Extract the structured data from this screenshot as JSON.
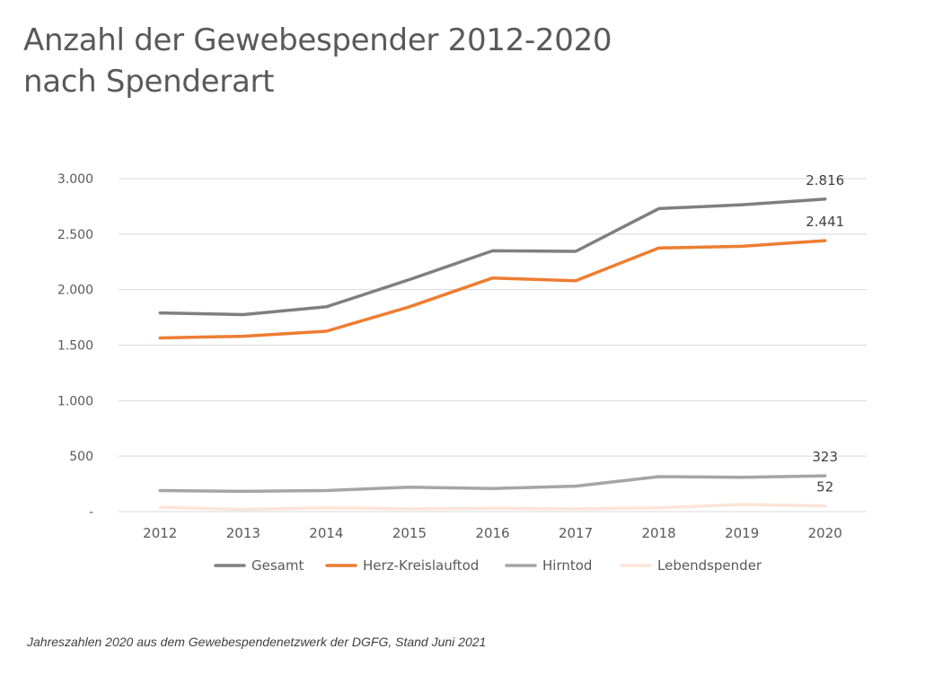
{
  "title_line1": "Anzahl der Gewebespender 2012-2020",
  "title_line2": "nach Spenderart",
  "footnote": "Jahreszahlen 2020 aus dem Gewebespendenetzwerk der DGFG, Stand Juni 2021",
  "colors": {
    "Gesamt": "#7f7f7f",
    "Herz-Kreislauftod": "#ed7d31",
    "Hirntod": "#a5a5a5",
    "Lebendspender": "#fbe5d6",
    "grid": "#d9d9d9",
    "text": "#595959"
  },
  "chart_data": {
    "type": "line",
    "categories": [
      "2012",
      "2013",
      "2014",
      "2015",
      "2016",
      "2017",
      "2018",
      "2019",
      "2020"
    ],
    "ylim": [
      0,
      3000
    ],
    "yticks": [
      {
        "value": 0,
        "label": "-"
      },
      {
        "value": 500,
        "label": "500"
      },
      {
        "value": 1000,
        "label": "1.000"
      },
      {
        "value": 1500,
        "label": "1.500"
      },
      {
        "value": 2000,
        "label": "2.000"
      },
      {
        "value": 2500,
        "label": "2.500"
      },
      {
        "value": 3000,
        "label": "3.000"
      }
    ],
    "grid": true,
    "legend": "bottom",
    "series": [
      {
        "name": "Gesamt",
        "values": [
          1790,
          1775,
          1845,
          2090,
          2350,
          2345,
          2730,
          2765,
          2816
        ],
        "end_label": "2.816"
      },
      {
        "name": "Herz-Kreislauftod",
        "values": [
          1565,
          1580,
          1625,
          1845,
          2105,
          2080,
          2375,
          2390,
          2441
        ],
        "end_label": "2.441"
      },
      {
        "name": "Hirntod",
        "values": [
          190,
          183,
          190,
          220,
          208,
          230,
          315,
          310,
          323
        ],
        "end_label": "323"
      },
      {
        "name": "Lebendspender",
        "values": [
          40,
          20,
          35,
          25,
          30,
          25,
          35,
          65,
          52
        ],
        "end_label": "52"
      }
    ]
  }
}
